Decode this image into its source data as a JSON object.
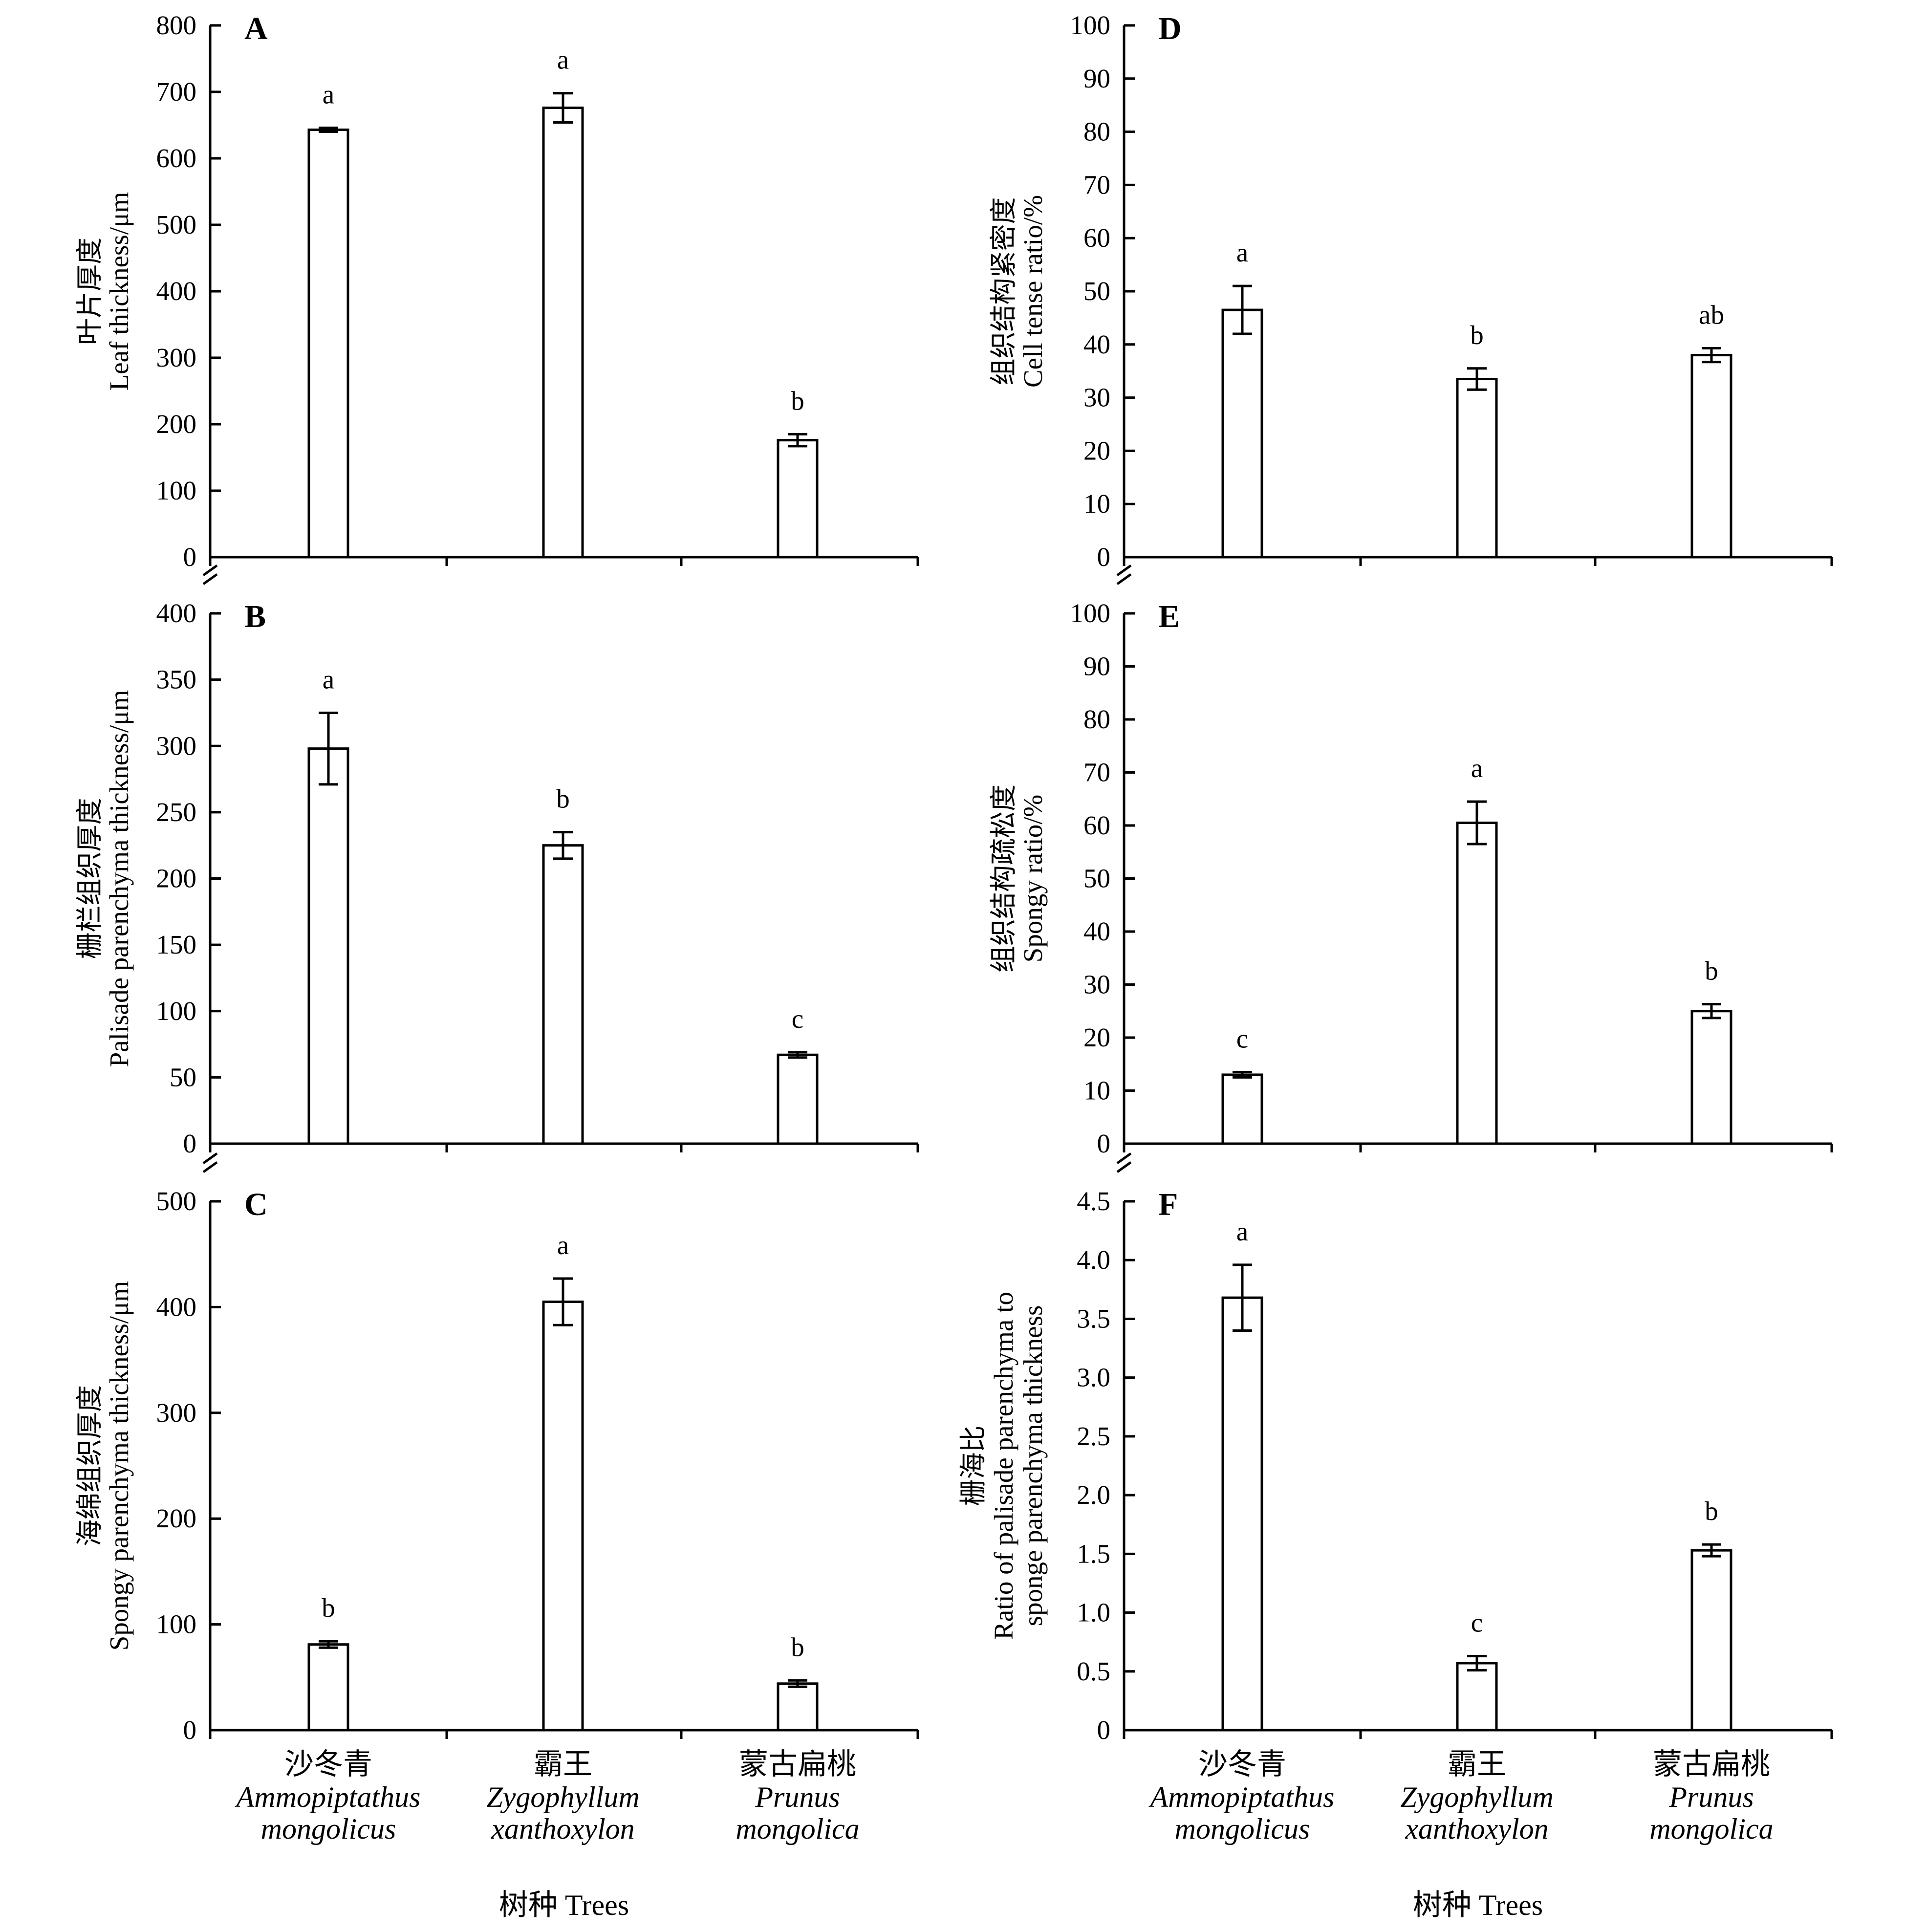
{
  "x_axis": {
    "categories": [
      {
        "cn": "沙冬青",
        "latin1": "Ammopiptathus",
        "latin2": "mongolicus"
      },
      {
        "cn": "霸王",
        "latin1": "Zygophyllum",
        "latin2": "xanthoxylon"
      },
      {
        "cn": "蒙古扁桃",
        "latin1": "Prunus",
        "latin2": "mongolica"
      }
    ],
    "title": "树种 Trees"
  },
  "chart_data": [
    {
      "panel": "A",
      "type": "bar",
      "categories": [
        "沙冬青",
        "霸王",
        "蒙古扁桃"
      ],
      "values": [
        643,
        676,
        176
      ],
      "errors": [
        3,
        22,
        9
      ],
      "sig": [
        "a",
        "a",
        "b"
      ],
      "ylabel_cn": "叶片厚度",
      "ylabel_en": "Leaf thickness/μm",
      "ylim": [
        0,
        800
      ],
      "yticks": [
        0,
        100,
        200,
        300,
        400,
        500,
        600,
        700,
        800
      ],
      "ytick_labels": [
        "0",
        "100",
        "200",
        "300",
        "400",
        "500",
        "600",
        "700",
        "800"
      ]
    },
    {
      "panel": "B",
      "type": "bar",
      "categories": [
        "沙冬青",
        "霸王",
        "蒙古扁桃"
      ],
      "values": [
        298,
        225,
        67
      ],
      "errors": [
        27,
        10,
        2
      ],
      "sig": [
        "a",
        "b",
        "c"
      ],
      "ylabel_cn": "栅栏组织厚度",
      "ylabel_en": "Palisade parenchyma thickness/μm",
      "ylim": [
        0,
        400
      ],
      "yticks": [
        0,
        50,
        100,
        150,
        200,
        250,
        300,
        350,
        400
      ],
      "ytick_labels": [
        "0",
        "50",
        "100",
        "150",
        "200",
        "250",
        "300",
        "350",
        "400"
      ]
    },
    {
      "panel": "C",
      "type": "bar",
      "categories": [
        "沙冬青",
        "霸王",
        "蒙古扁桃"
      ],
      "values": [
        81,
        405,
        44
      ],
      "errors": [
        3,
        22,
        3
      ],
      "sig": [
        "b",
        "a",
        "b"
      ],
      "ylabel_cn": "海绵组织厚度",
      "ylabel_en": "Spongy parenchyma thickness/μm",
      "ylim": [
        0,
        500
      ],
      "yticks": [
        0,
        100,
        200,
        300,
        400,
        500
      ],
      "ytick_labels": [
        "0",
        "100",
        "200",
        "300",
        "400",
        "500"
      ]
    },
    {
      "panel": "D",
      "type": "bar",
      "categories": [
        "沙冬青",
        "霸王",
        "蒙古扁桃"
      ],
      "values": [
        46.5,
        33.5,
        38
      ],
      "errors": [
        4.5,
        2,
        1.3
      ],
      "sig": [
        "a",
        "b",
        "ab"
      ],
      "ylabel_cn": "组织结构紧密度",
      "ylabel_en": "Cell tense ratio/%",
      "ylim": [
        0,
        100
      ],
      "yticks": [
        0,
        10,
        20,
        30,
        40,
        50,
        60,
        70,
        80,
        90,
        100
      ],
      "ytick_labels": [
        "0",
        "10",
        "20",
        "30",
        "40",
        "50",
        "60",
        "70",
        "80",
        "90",
        "100"
      ]
    },
    {
      "panel": "E",
      "type": "bar",
      "categories": [
        "沙冬青",
        "霸王",
        "蒙古扁桃"
      ],
      "values": [
        13,
        60.5,
        25
      ],
      "errors": [
        0.5,
        4,
        1.3
      ],
      "sig": [
        "c",
        "a",
        "b"
      ],
      "ylabel_cn": "组织结构疏松度",
      "ylabel_en": "Spongy ratio/%",
      "ylim": [
        0,
        100
      ],
      "yticks": [
        0,
        10,
        20,
        30,
        40,
        50,
        60,
        70,
        80,
        90,
        100
      ],
      "ytick_labels": [
        "0",
        "10",
        "20",
        "30",
        "40",
        "50",
        "60",
        "70",
        "80",
        "90",
        "100"
      ]
    },
    {
      "panel": "F",
      "type": "bar",
      "categories": [
        "沙冬青",
        "霸王",
        "蒙古扁桃"
      ],
      "values": [
        3.68,
        0.57,
        1.53
      ],
      "errors": [
        0.28,
        0.06,
        0.05
      ],
      "sig": [
        "a",
        "c",
        "b"
      ],
      "ylabel_cn": "栅海比",
      "ylabel_en": "Ratio of palisade parenchyma to",
      "ylabel_en2": "sponge parenchyma thickness",
      "ylim": [
        0,
        4.5
      ],
      "yticks": [
        0,
        0.5,
        1,
        1.5,
        2,
        2.5,
        3,
        3.5,
        4,
        4.5
      ],
      "ytick_labels": [
        "0",
        "0.5",
        "1.0",
        "1.5",
        "2.0",
        "2.5",
        "3.0",
        "3.5",
        "4.0",
        "4.5"
      ]
    }
  ]
}
